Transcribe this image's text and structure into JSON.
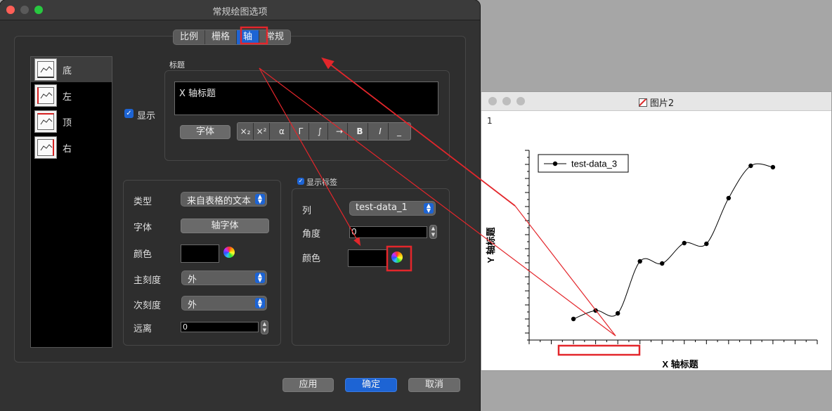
{
  "dialog": {
    "title": "常规绘图选项",
    "tabs": [
      {
        "label": "比例",
        "active": false
      },
      {
        "label": "栅格",
        "active": false
      },
      {
        "label": "轴",
        "active": true
      },
      {
        "label": "常规",
        "active": false
      }
    ],
    "axes": [
      {
        "label": "底",
        "selected": true
      },
      {
        "label": "左",
        "selected": false
      },
      {
        "label": "顶",
        "selected": false
      },
      {
        "label": "右",
        "selected": false
      }
    ],
    "title_group": {
      "label": "标题",
      "show_label": "显示",
      "show_checked": true,
      "title_text": "X 轴标题",
      "font_button": "字体",
      "format_buttons": [
        "×₂",
        "×²",
        "α",
        "Γ",
        "∫",
        "→",
        "B",
        "I",
        "_"
      ]
    },
    "tick_group": {
      "type_label": "类型",
      "type_value": "来自表格的文本",
      "font_label": "字体",
      "font_button": "轴字体",
      "color_label": "颜色",
      "major_label": "主刻度",
      "major_value": "外",
      "minor_label": "次刻度",
      "minor_value": "外",
      "distance_label": "远离",
      "distance_value": "0"
    },
    "label_group": {
      "show_labels": "显示标签",
      "show_checked": true,
      "column_label": "列",
      "column_value": "test-data_1",
      "angle_label": "角度",
      "angle_value": "0",
      "color_label": "颜色"
    },
    "buttons": {
      "apply": "应用",
      "ok": "确定",
      "cancel": "取消"
    }
  },
  "graph_window": {
    "title": "图片2",
    "layer_number": "1",
    "x_title": "X 轴标题",
    "y_title": "Y 轴标题",
    "legend": "test-data_3"
  },
  "chart_data": {
    "type": "line",
    "series": [
      {
        "name": "test-data_3",
        "x": [
          1,
          2,
          3,
          4,
          5,
          6,
          7,
          8,
          9,
          10
        ],
        "y": [
          1.0,
          1.6,
          1.4,
          5.1,
          4.95,
          6.4,
          6.35,
          9.6,
          11.9,
          11.8
        ]
      }
    ],
    "xlim": [
      -1,
      12
    ],
    "ylim": [
      -0.5,
      13
    ],
    "xlabel": "X 轴标题",
    "ylabel": "Y 轴标题",
    "legend_position": "top-left",
    "smooth": true,
    "markers": true,
    "colors": {
      "line": "#000000",
      "marker": "#000000"
    }
  },
  "annotations": {
    "color": "#e3262b"
  }
}
